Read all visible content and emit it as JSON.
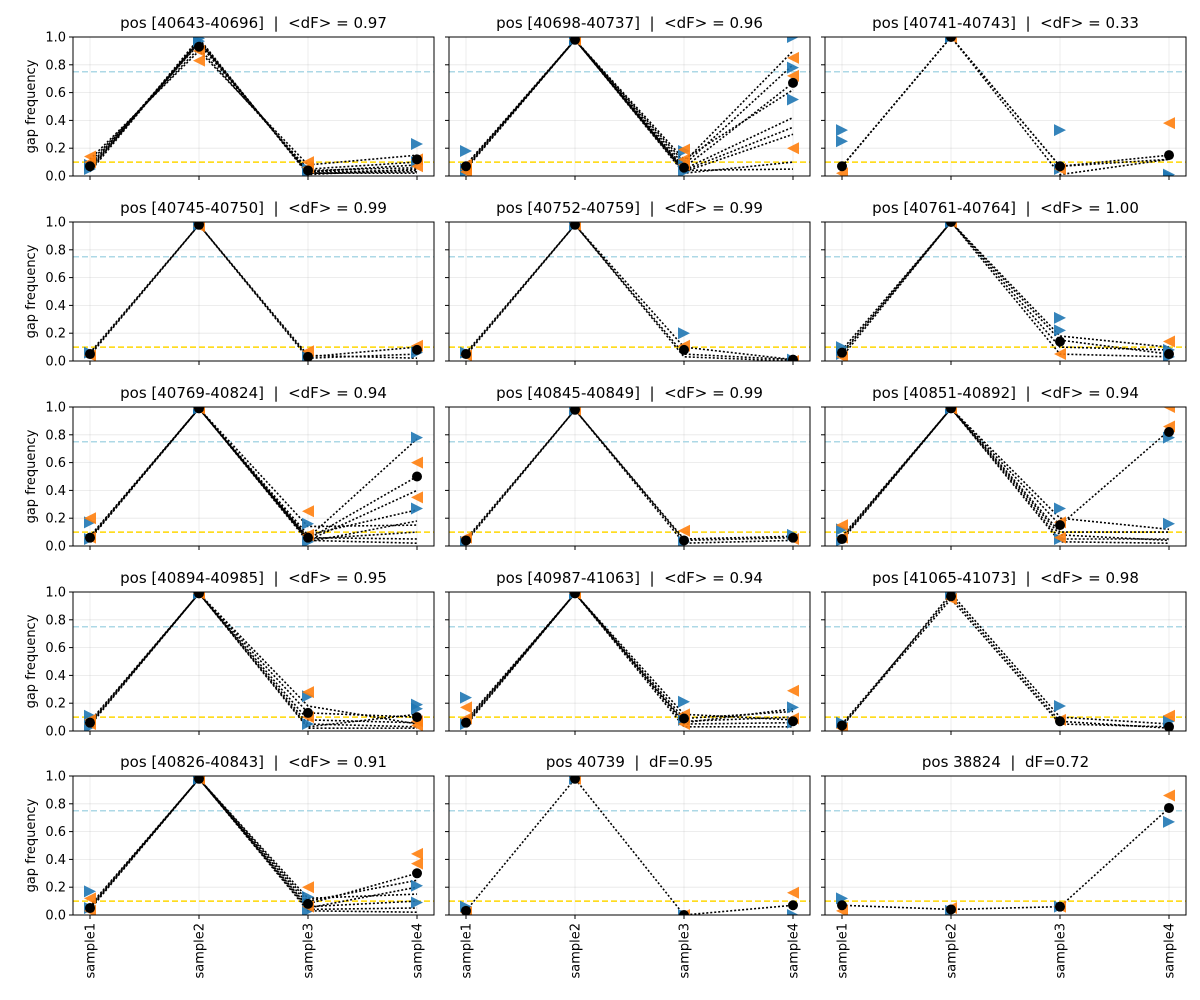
{
  "chart_data": {
    "type": "line",
    "grid": true,
    "ylabel": "gap frequency",
    "categories": [
      "sample1",
      "sample2",
      "sample3",
      "sample4"
    ],
    "yticks": [
      "0.0",
      "0.2",
      "0.4",
      "0.6",
      "0.8",
      "1.0"
    ],
    "ylim": [
      0,
      1
    ],
    "reference_lines": [
      {
        "y": 0.75,
        "color": "#add8e6",
        "style": "dashed"
      },
      {
        "y": 0.1,
        "color": "#ffd700",
        "style": "dashed"
      }
    ],
    "marker_colors": {
      "right_triangle": "#1f77b4",
      "left_triangle": "#ff7f0e",
      "mean_dot": "#000000",
      "line": "#000000"
    },
    "panels": [
      {
        "title": "pos [40643-40696]  |  <dF> = 0.97",
        "lines": [
          [
            0.05,
            0.97,
            0.03,
            0.04
          ],
          [
            0.08,
            0.95,
            0.04,
            0.06
          ],
          [
            0.1,
            0.92,
            0.05,
            0.1
          ],
          [
            0.03,
            0.98,
            0.02,
            0.02
          ],
          [
            0.06,
            0.96,
            0.03,
            0.08
          ],
          [
            0.12,
            0.9,
            0.08,
            0.15
          ],
          [
            0.07,
            0.97,
            0.02,
            0.03
          ],
          [
            0.04,
            0.99,
            0.01,
            0.05
          ]
        ],
        "mean": [
          0.07,
          0.93,
          0.04,
          0.12
        ],
        "blue": [
          [
            0.05,
            0.99,
            0.03,
            0.23
          ],
          [
            0.08,
            0.97,
            0.05,
            0.1
          ]
        ],
        "orange": [
          [
            0.14,
            0.83,
            0.1,
            0.12
          ],
          [
            0.1,
            0.9,
            0.06,
            0.07
          ]
        ]
      },
      {
        "title": "pos [40698-40737]  |  <dF> = 0.96",
        "lines": [
          [
            0.06,
            0.98,
            0.1,
            0.9
          ],
          [
            0.08,
            0.98,
            0.08,
            0.8
          ],
          [
            0.07,
            0.98,
            0.06,
            0.67
          ],
          [
            0.05,
            0.98,
            0.12,
            0.62
          ],
          [
            0.08,
            0.98,
            0.05,
            0.42
          ],
          [
            0.06,
            0.98,
            0.04,
            0.35
          ],
          [
            0.07,
            0.98,
            0.03,
            0.3
          ],
          [
            0.05,
            0.98,
            0.02,
            0.1
          ],
          [
            0.08,
            0.98,
            0.04,
            0.05
          ]
        ],
        "mean": [
          0.07,
          0.98,
          0.06,
          0.67
        ],
        "blue": [
          [
            0.18,
            0.99,
            0.18,
            1.0
          ],
          [
            0.05,
            0.98,
            0.1,
            0.55
          ],
          [
            0.03,
            0.98,
            0.03,
            0.78
          ]
        ],
        "orange": [
          [
            0.03,
            0.98,
            0.19,
            0.85
          ],
          [
            0.05,
            0.98,
            0.08,
            0.2
          ],
          [
            0.08,
            0.98,
            0.12,
            0.72
          ]
        ]
      },
      {
        "title": "pos [40741-40743]  |  <dF> = 0.33",
        "lines": [
          [
            0.07,
            1.0,
            0.07,
            0.15
          ],
          [
            0.07,
            1.0,
            0.01,
            0.12
          ],
          [
            0.07,
            1.0,
            0.07,
            0.12
          ]
        ],
        "mean": [
          0.07,
          1.0,
          0.07,
          0.15
        ],
        "blue": [
          [
            0.33,
            1.0,
            0.33,
            0.01
          ],
          [
            0.25,
            1.0,
            0.05,
            0.0
          ]
        ],
        "orange": [
          [
            0.02,
            1.0,
            0.05,
            0.38
          ]
        ]
      },
      {
        "title": "pos [40745-40750]  |  <dF> = 0.99",
        "lines": [
          [
            0.05,
            0.98,
            0.03,
            0.1
          ],
          [
            0.06,
            0.98,
            0.02,
            0.05
          ],
          [
            0.04,
            0.98,
            0.04,
            0.02
          ]
        ],
        "mean": [
          0.05,
          0.98,
          0.03,
          0.08
        ],
        "blue": [
          [
            0.06,
            0.98,
            0.03,
            0.06
          ]
        ],
        "orange": [
          [
            0.04,
            0.97,
            0.07,
            0.11
          ]
        ]
      },
      {
        "title": "pos [40752-40759]  |  <dF> = 0.99",
        "lines": [
          [
            0.05,
            0.98,
            0.1,
            0.01
          ],
          [
            0.04,
            0.98,
            0.05,
            0.01
          ],
          [
            0.06,
            0.98,
            0.03,
            0.0
          ]
        ],
        "mean": [
          0.05,
          0.98,
          0.08,
          0.01
        ],
        "blue": [
          [
            0.06,
            0.98,
            0.2,
            0.01
          ]
        ],
        "orange": [
          [
            0.04,
            0.98,
            0.11,
            0.0
          ]
        ]
      },
      {
        "title": "pos [40761-40764]  |  <dF> = 1.00",
        "lines": [
          [
            0.05,
            1.0,
            0.15,
            0.05
          ],
          [
            0.08,
            1.0,
            0.1,
            0.08
          ],
          [
            0.03,
            1.0,
            0.05,
            0.03
          ],
          [
            0.06,
            1.0,
            0.18,
            0.1
          ]
        ],
        "mean": [
          0.06,
          1.0,
          0.14,
          0.05
        ],
        "blue": [
          [
            0.1,
            1.0,
            0.31,
            0.03
          ],
          [
            0.05,
            1.0,
            0.22,
            0.08
          ]
        ],
        "orange": [
          [
            0.03,
            1.0,
            0.05,
            0.14
          ]
        ]
      },
      {
        "title": "pos [40769-40824]  |  <dF> = 0.94",
        "lines": [
          [
            0.06,
            0.99,
            0.06,
            0.77
          ],
          [
            0.05,
            0.99,
            0.05,
            0.5
          ],
          [
            0.07,
            0.99,
            0.04,
            0.4
          ],
          [
            0.06,
            0.99,
            0.08,
            0.26
          ],
          [
            0.05,
            0.99,
            0.03,
            0.18
          ],
          [
            0.06,
            0.99,
            0.05,
            0.1
          ],
          [
            0.07,
            0.99,
            0.06,
            0.05
          ],
          [
            0.05,
            0.99,
            0.04,
            0.02
          ],
          [
            0.06,
            0.99,
            0.14,
            0.15
          ]
        ],
        "mean": [
          0.06,
          0.99,
          0.06,
          0.5
        ],
        "blue": [
          [
            0.17,
            0.99,
            0.16,
            0.78
          ],
          [
            0.05,
            0.99,
            0.03,
            0.27
          ]
        ],
        "orange": [
          [
            0.2,
            0.99,
            0.25,
            0.6
          ],
          [
            0.06,
            0.99,
            0.08,
            0.35
          ]
        ]
      },
      {
        "title": "pos [40845-40849]  |  <dF> = 0.99",
        "lines": [
          [
            0.03,
            0.98,
            0.04,
            0.06
          ],
          [
            0.04,
            0.98,
            0.02,
            0.04
          ],
          [
            0.05,
            0.98,
            0.05,
            0.07
          ]
        ],
        "mean": [
          0.04,
          0.98,
          0.04,
          0.06
        ],
        "blue": [
          [
            0.03,
            0.98,
            0.03,
            0.08
          ]
        ],
        "orange": [
          [
            0.06,
            0.98,
            0.11,
            0.05
          ]
        ]
      },
      {
        "title": "pos [40851-40892]  |  <dF> = 0.94",
        "lines": [
          [
            0.05,
            0.99,
            0.15,
            0.83
          ],
          [
            0.06,
            0.99,
            0.1,
            0.1
          ],
          [
            0.04,
            0.99,
            0.05,
            0.05
          ],
          [
            0.07,
            0.99,
            0.08,
            0.04
          ],
          [
            0.05,
            0.99,
            0.03,
            0.02
          ],
          [
            0.06,
            0.99,
            0.2,
            0.12
          ]
        ],
        "mean": [
          0.05,
          0.99,
          0.15,
          0.82
        ],
        "blue": [
          [
            0.12,
            0.99,
            0.27,
            0.78
          ],
          [
            0.04,
            0.99,
            0.05,
            0.16
          ]
        ],
        "orange": [
          [
            0.15,
            0.99,
            0.06,
            1.0
          ],
          [
            0.06,
            0.99,
            0.17,
            0.86
          ]
        ]
      },
      {
        "title": "pos [40894-40985]  |  <dF> = 0.95",
        "lines": [
          [
            0.06,
            0.99,
            0.13,
            0.1
          ],
          [
            0.05,
            0.99,
            0.08,
            0.06
          ],
          [
            0.07,
            0.99,
            0.05,
            0.03
          ],
          [
            0.04,
            0.99,
            0.03,
            0.12
          ],
          [
            0.06,
            0.99,
            0.18,
            0.05
          ],
          [
            0.05,
            0.99,
            0.02,
            0.02
          ]
        ],
        "mean": [
          0.06,
          0.99,
          0.13,
          0.1
        ],
        "blue": [
          [
            0.11,
            0.99,
            0.25,
            0.19
          ],
          [
            0.03,
            0.99,
            0.05,
            0.16
          ]
        ],
        "orange": [
          [
            0.08,
            0.99,
            0.28,
            0.07
          ],
          [
            0.05,
            0.99,
            0.1,
            0.04
          ]
        ]
      },
      {
        "title": "pos [40987-41063]  |  <dF> = 0.94",
        "lines": [
          [
            0.05,
            0.99,
            0.09,
            0.14
          ],
          [
            0.06,
            0.99,
            0.07,
            0.1
          ],
          [
            0.04,
            0.99,
            0.05,
            0.06
          ],
          [
            0.07,
            0.99,
            0.12,
            0.08
          ],
          [
            0.05,
            0.99,
            0.03,
            0.03
          ],
          [
            0.08,
            0.99,
            0.06,
            0.16
          ]
        ],
        "mean": [
          0.06,
          0.99,
          0.09,
          0.07
        ],
        "blue": [
          [
            0.24,
            0.99,
            0.21,
            0.17
          ],
          [
            0.05,
            0.99,
            0.08,
            0.06
          ]
        ],
        "orange": [
          [
            0.17,
            0.99,
            0.12,
            0.29
          ],
          [
            0.09,
            0.99,
            0.05,
            0.09
          ]
        ]
      },
      {
        "title": "pos [41065-41073]  |  <dF> = 0.98",
        "lines": [
          [
            0.05,
            0.97,
            0.07,
            0.02
          ],
          [
            0.04,
            0.95,
            0.05,
            0.03
          ],
          [
            0.03,
            0.99,
            0.1,
            0.05
          ]
        ],
        "mean": [
          0.04,
          0.97,
          0.07,
          0.03
        ],
        "blue": [
          [
            0.06,
            0.99,
            0.18,
            0.07
          ]
        ],
        "orange": [
          [
            0.02,
            0.95,
            0.08,
            0.11
          ]
        ]
      },
      {
        "title": "pos [40826-40843]  |  <dF> = 0.91",
        "lines": [
          [
            0.05,
            0.98,
            0.08,
            0.3
          ],
          [
            0.06,
            0.98,
            0.05,
            0.2
          ],
          [
            0.04,
            0.98,
            0.12,
            0.15
          ],
          [
            0.07,
            0.98,
            0.06,
            0.1
          ],
          [
            0.05,
            0.98,
            0.04,
            0.05
          ],
          [
            0.06,
            0.98,
            0.1,
            0.25
          ],
          [
            0.04,
            0.98,
            0.03,
            0.02
          ]
        ],
        "mean": [
          0.05,
          0.98,
          0.08,
          0.3
        ],
        "blue": [
          [
            0.17,
            0.98,
            0.13,
            0.21
          ],
          [
            0.05,
            0.98,
            0.03,
            0.09
          ]
        ],
        "orange": [
          [
            0.03,
            0.98,
            0.2,
            0.44
          ],
          [
            0.12,
            0.98,
            0.06,
            0.37
          ]
        ]
      },
      {
        "title": "pos 40739  |  dF=0.95",
        "lines": [
          [
            0.03,
            0.98,
            0.0,
            0.07
          ]
        ],
        "mean": [
          0.03,
          0.98,
          0.0,
          0.07
        ],
        "blue": [
          [
            0.06,
            0.98,
            0.0,
            0.0
          ]
        ],
        "orange": [
          [
            0.02,
            0.98,
            0.0,
            0.16
          ]
        ]
      },
      {
        "title": "pos 38824  |  dF=0.72",
        "lines": [
          [
            0.07,
            0.04,
            0.06,
            0.77
          ]
        ],
        "mean": [
          0.07,
          0.04,
          0.06,
          0.77
        ],
        "blue": [
          [
            0.12,
            0.03,
            0.06,
            0.67
          ]
        ],
        "orange": [
          [
            0.03,
            0.05,
            0.06,
            0.86
          ]
        ]
      }
    ]
  }
}
